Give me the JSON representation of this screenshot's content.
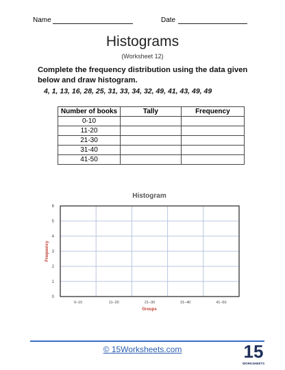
{
  "header": {
    "name_label": "Name",
    "date_label": "Date"
  },
  "title": "Histograms",
  "subtitle": "(Worksheet 12)",
  "instruction": "Complete the frequency distribution using the data given below and draw histogram.",
  "data_values": "4, 1, 13, 16, 28, 25, 31, 33, 34, 32, 49, 41, 43, 49, 49",
  "table": {
    "columns": [
      "Number of books",
      "Tally",
      "Frequency"
    ],
    "rows": [
      "0-10",
      "11-20",
      "21-30",
      "31-40",
      "41-50"
    ]
  },
  "histogram": {
    "title": "Histogram",
    "categories": [
      "0–10",
      "11–20",
      "21–30",
      "31–40",
      "41–50"
    ],
    "ylim": [
      0,
      6
    ],
    "yticks": [
      0,
      1,
      2,
      3,
      4,
      5,
      6
    ],
    "x_label": "Groups",
    "y_label": "Frequency"
  },
  "footer": {
    "link": "© 15Worksheets.com",
    "logo_number": "15",
    "logo_text": "WORKSHEETS"
  }
}
